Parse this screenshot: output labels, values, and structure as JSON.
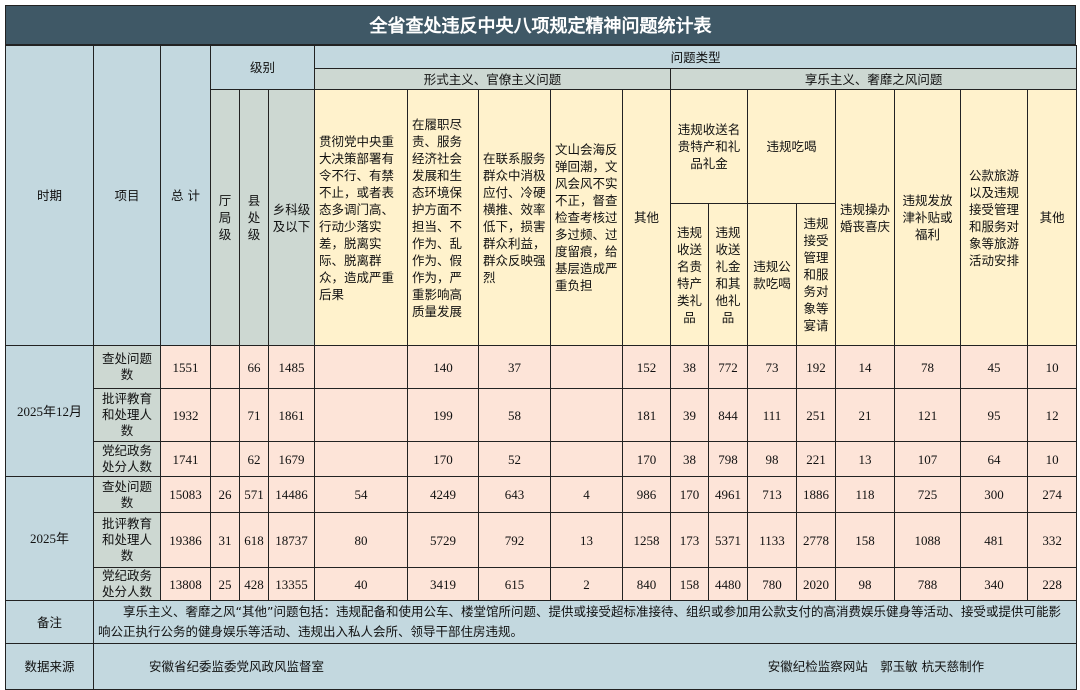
{
  "title": "全省查处违反中央八项规定精神问题统计表",
  "header": {
    "period": "时期",
    "item": "项目",
    "total": "总 计",
    "level": "级别",
    "level_cols": [
      "厅局级",
      "县处级",
      "乡科级及以下"
    ],
    "problem_type": "问题类型",
    "formalism": "形式主义、官僚主义问题",
    "formalism_cols": [
      "贯彻党中央重大决策部署有令不行、有禁不止，或者表态多调门高、行动少落实差，脱离实际、脱离群众，造成严重后果",
      "在履职尽责、服务经济社会发展和生态环境保护方面不担当、不作为、乱作为、假作为，严重影响高质量发展",
      "在联系服务群众中消极应付、冷硬横推、效率低下，损害群众利益，群众反映强烈",
      "文山会海反弹回潮，文风会风不实不正，督查检查考核过多过频、过度留痕，给基层造成严重负担",
      "其他"
    ],
    "hedonism": "享乐主义、奢靡之风问题",
    "gift_group": "违规收送名贵特产和礼品礼金",
    "gift_cols": [
      "违规收送名贵特产类礼品",
      "违规收送礼金和其他礼品"
    ],
    "dining_group": "违规吃喝",
    "dining_cols": [
      "违规公款吃喝",
      "违规接受管理和服务对象等宴请"
    ],
    "hedonism_cols": [
      "违规操办婚丧喜庆",
      "违规发放津补贴或福利",
      "公款旅游以及违规接受管理和服务对象等旅游活动安排",
      "其他"
    ]
  },
  "groups": [
    {
      "period": "2025年12月",
      "rows": [
        {
          "item": "查处问题数",
          "values": [
            "1551",
            "",
            "66",
            "1485",
            "",
            "140",
            "37",
            "",
            "152",
            "38",
            "772",
            "73",
            "192",
            "14",
            "78",
            "45",
            "10"
          ]
        },
        {
          "item": "批评教育和处理人数",
          "values": [
            "1932",
            "",
            "71",
            "1861",
            "",
            "199",
            "58",
            "",
            "181",
            "39",
            "844",
            "111",
            "251",
            "21",
            "121",
            "95",
            "12"
          ]
        },
        {
          "item": "党纪政务处分人数",
          "values": [
            "1741",
            "",
            "62",
            "1679",
            "",
            "170",
            "52",
            "",
            "170",
            "38",
            "798",
            "98",
            "221",
            "13",
            "107",
            "64",
            "10"
          ]
        }
      ]
    },
    {
      "period": "2025年",
      "rows": [
        {
          "item": "查处问题数",
          "values": [
            "15083",
            "26",
            "571",
            "14486",
            "54",
            "4249",
            "643",
            "4",
            "986",
            "170",
            "4961",
            "713",
            "1886",
            "118",
            "725",
            "300",
            "274"
          ]
        },
        {
          "item": "批评教育和处理人数",
          "values": [
            "19386",
            "31",
            "618",
            "18737",
            "80",
            "5729",
            "792",
            "13",
            "1258",
            "173",
            "5371",
            "1133",
            "2778",
            "158",
            "1088",
            "481",
            "332"
          ]
        },
        {
          "item": "党纪政务处分人数",
          "values": [
            "13808",
            "25",
            "428",
            "13355",
            "40",
            "3419",
            "615",
            "2",
            "840",
            "158",
            "4480",
            "780",
            "2020",
            "98",
            "788",
            "340",
            "228"
          ]
        }
      ]
    }
  ],
  "note": {
    "label": "备注",
    "text": "享乐主义、奢靡之风“其他”问题包括：违规配备和使用公车、楼堂馆所问题、提供或接受超标准接待、组织或参加用公款支付的高消费娱乐健身等活动、接受或提供可能影响公正执行公务的健身娱乐等活动、违规出入私人会所、领导干部住房违规。"
  },
  "source": {
    "label": "数据来源",
    "left": "安徽省纪委监委党风政风监督室",
    "right": "安徽纪检监察网站　郭玉敏 杭天慈制作"
  },
  "colors": {
    "title_bg": "#3f5866",
    "header_blue": "#c3d8df",
    "header_gray": "#cdd8d2",
    "header_yellow": "#fff2cc",
    "data_bg": "#fde4d8"
  }
}
